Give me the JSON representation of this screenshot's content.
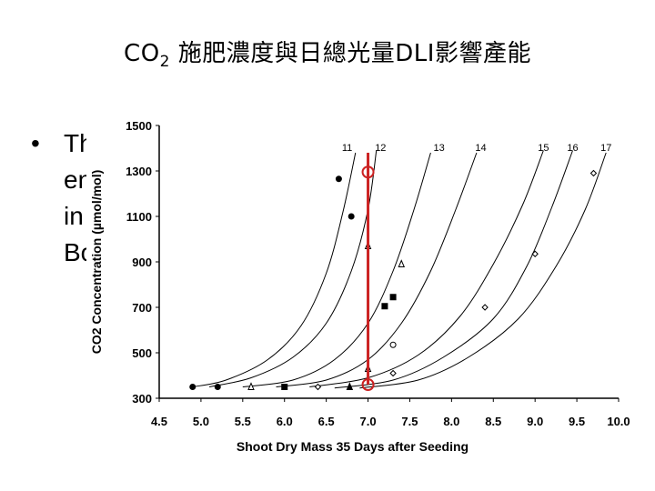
{
  "slide": {
    "title_main": "CO",
    "title_sub": "2",
    "title_rest": " 施肥濃度與日總光量DLI影響產能",
    "bullet_symbol": "•",
    "bullet_lines": [
      "Th",
      "en",
      "in",
      "Bo"
    ]
  },
  "chart_data": {
    "type": "line",
    "title": "",
    "xlabel": "Shoot Dry Mass 35 Days after Seeding",
    "ylabel": "CO2 Concentration (µmol/mol)",
    "xlim": [
      4.5,
      10.0
    ],
    "ylim": [
      300,
      1500
    ],
    "xticks": [
      "4.5",
      "5.0",
      "5.5",
      "6.0",
      "6.5",
      "7.0",
      "7.5",
      "8.0",
      "8.5",
      "9.0",
      "9.5",
      "10.0"
    ],
    "yticks": [
      "300",
      "500",
      "700",
      "900",
      "1100",
      "1300",
      "1500"
    ],
    "grid": false,
    "series": [
      {
        "name": "11",
        "x": [
          4.9,
          5.3,
          5.8,
          6.2,
          6.5,
          6.7,
          6.85
        ],
        "y": [
          350,
          380,
          470,
          620,
          850,
          1120,
          1380
        ]
      },
      {
        "name": "12",
        "x": [
          5.1,
          5.6,
          6.1,
          6.5,
          6.8,
          7.0,
          7.1
        ],
        "y": [
          350,
          390,
          480,
          630,
          860,
          1130,
          1390
        ]
      },
      {
        "name": "13",
        "x": [
          5.5,
          6.1,
          6.6,
          7.0,
          7.3,
          7.55,
          7.75
        ],
        "y": [
          350,
          380,
          470,
          630,
          860,
          1130,
          1380
        ]
      },
      {
        "name": "14",
        "x": [
          5.9,
          6.5,
          7.0,
          7.4,
          7.75,
          8.05,
          8.3
        ],
        "y": [
          350,
          380,
          470,
          630,
          860,
          1130,
          1380
        ]
      },
      {
        "name": "15",
        "x": [
          6.3,
          7.0,
          7.6,
          8.1,
          8.5,
          8.85,
          9.1
        ],
        "y": [
          350,
          390,
          490,
          660,
          890,
          1150,
          1390
        ]
      },
      {
        "name": "16",
        "x": [
          6.6,
          7.3,
          7.9,
          8.5,
          8.9,
          9.2,
          9.45
        ],
        "y": [
          345,
          380,
          480,
          650,
          880,
          1140,
          1390
        ]
      },
      {
        "name": "17",
        "x": [
          6.9,
          7.6,
          8.2,
          8.8,
          9.25,
          9.6,
          9.85
        ],
        "y": [
          345,
          380,
          480,
          650,
          880,
          1130,
          1380
        ]
      }
    ],
    "curve_labels": [
      {
        "text": "11",
        "x": 6.75
      },
      {
        "text": "12",
        "x": 7.15
      },
      {
        "text": "13",
        "x": 7.85
      },
      {
        "text": "14",
        "x": 8.35
      },
      {
        "text": "15",
        "x": 9.1
      },
      {
        "text": "16",
        "x": 9.45
      },
      {
        "text": "17",
        "x": 9.85
      }
    ],
    "curve_label_y": 1400,
    "markers": [
      {
        "shape": "circle-filled",
        "x": 4.9,
        "y": 350
      },
      {
        "shape": "circle-filled",
        "x": 5.2,
        "y": 350
      },
      {
        "shape": "circle-filled",
        "x": 6.65,
        "y": 1265
      },
      {
        "shape": "circle-filled",
        "x": 6.8,
        "y": 1100
      },
      {
        "shape": "triangle-open",
        "x": 5.6,
        "y": 350
      },
      {
        "shape": "square-filled",
        "x": 6.0,
        "y": 350
      },
      {
        "shape": "diamond-open",
        "x": 6.4,
        "y": 350
      },
      {
        "shape": "triangle-filled",
        "x": 6.78,
        "y": 350
      },
      {
        "shape": "triangle-open",
        "x": 7.0,
        "y": 970
      },
      {
        "shape": "triangle-open",
        "x": 7.4,
        "y": 890
      },
      {
        "shape": "square-filled",
        "x": 7.3,
        "y": 745
      },
      {
        "shape": "square-filled",
        "x": 7.2,
        "y": 705
      },
      {
        "shape": "triangle-open",
        "x": 7.0,
        "y": 430
      },
      {
        "shape": "circle-open",
        "x": 7.3,
        "y": 535
      },
      {
        "shape": "diamond-open",
        "x": 7.3,
        "y": 410
      },
      {
        "shape": "diamond-open",
        "x": 8.4,
        "y": 700
      },
      {
        "shape": "diamond-open",
        "x": 9.0,
        "y": 935
      },
      {
        "shape": "diamond-open",
        "x": 9.7,
        "y": 1290
      }
    ],
    "highlight": {
      "color": "#cc2222",
      "x": 7.0,
      "y_from": 360,
      "y_to": 1380,
      "circles": [
        {
          "x": 7.0,
          "y": 1295
        },
        {
          "x": 7.0,
          "y": 360
        }
      ]
    }
  }
}
